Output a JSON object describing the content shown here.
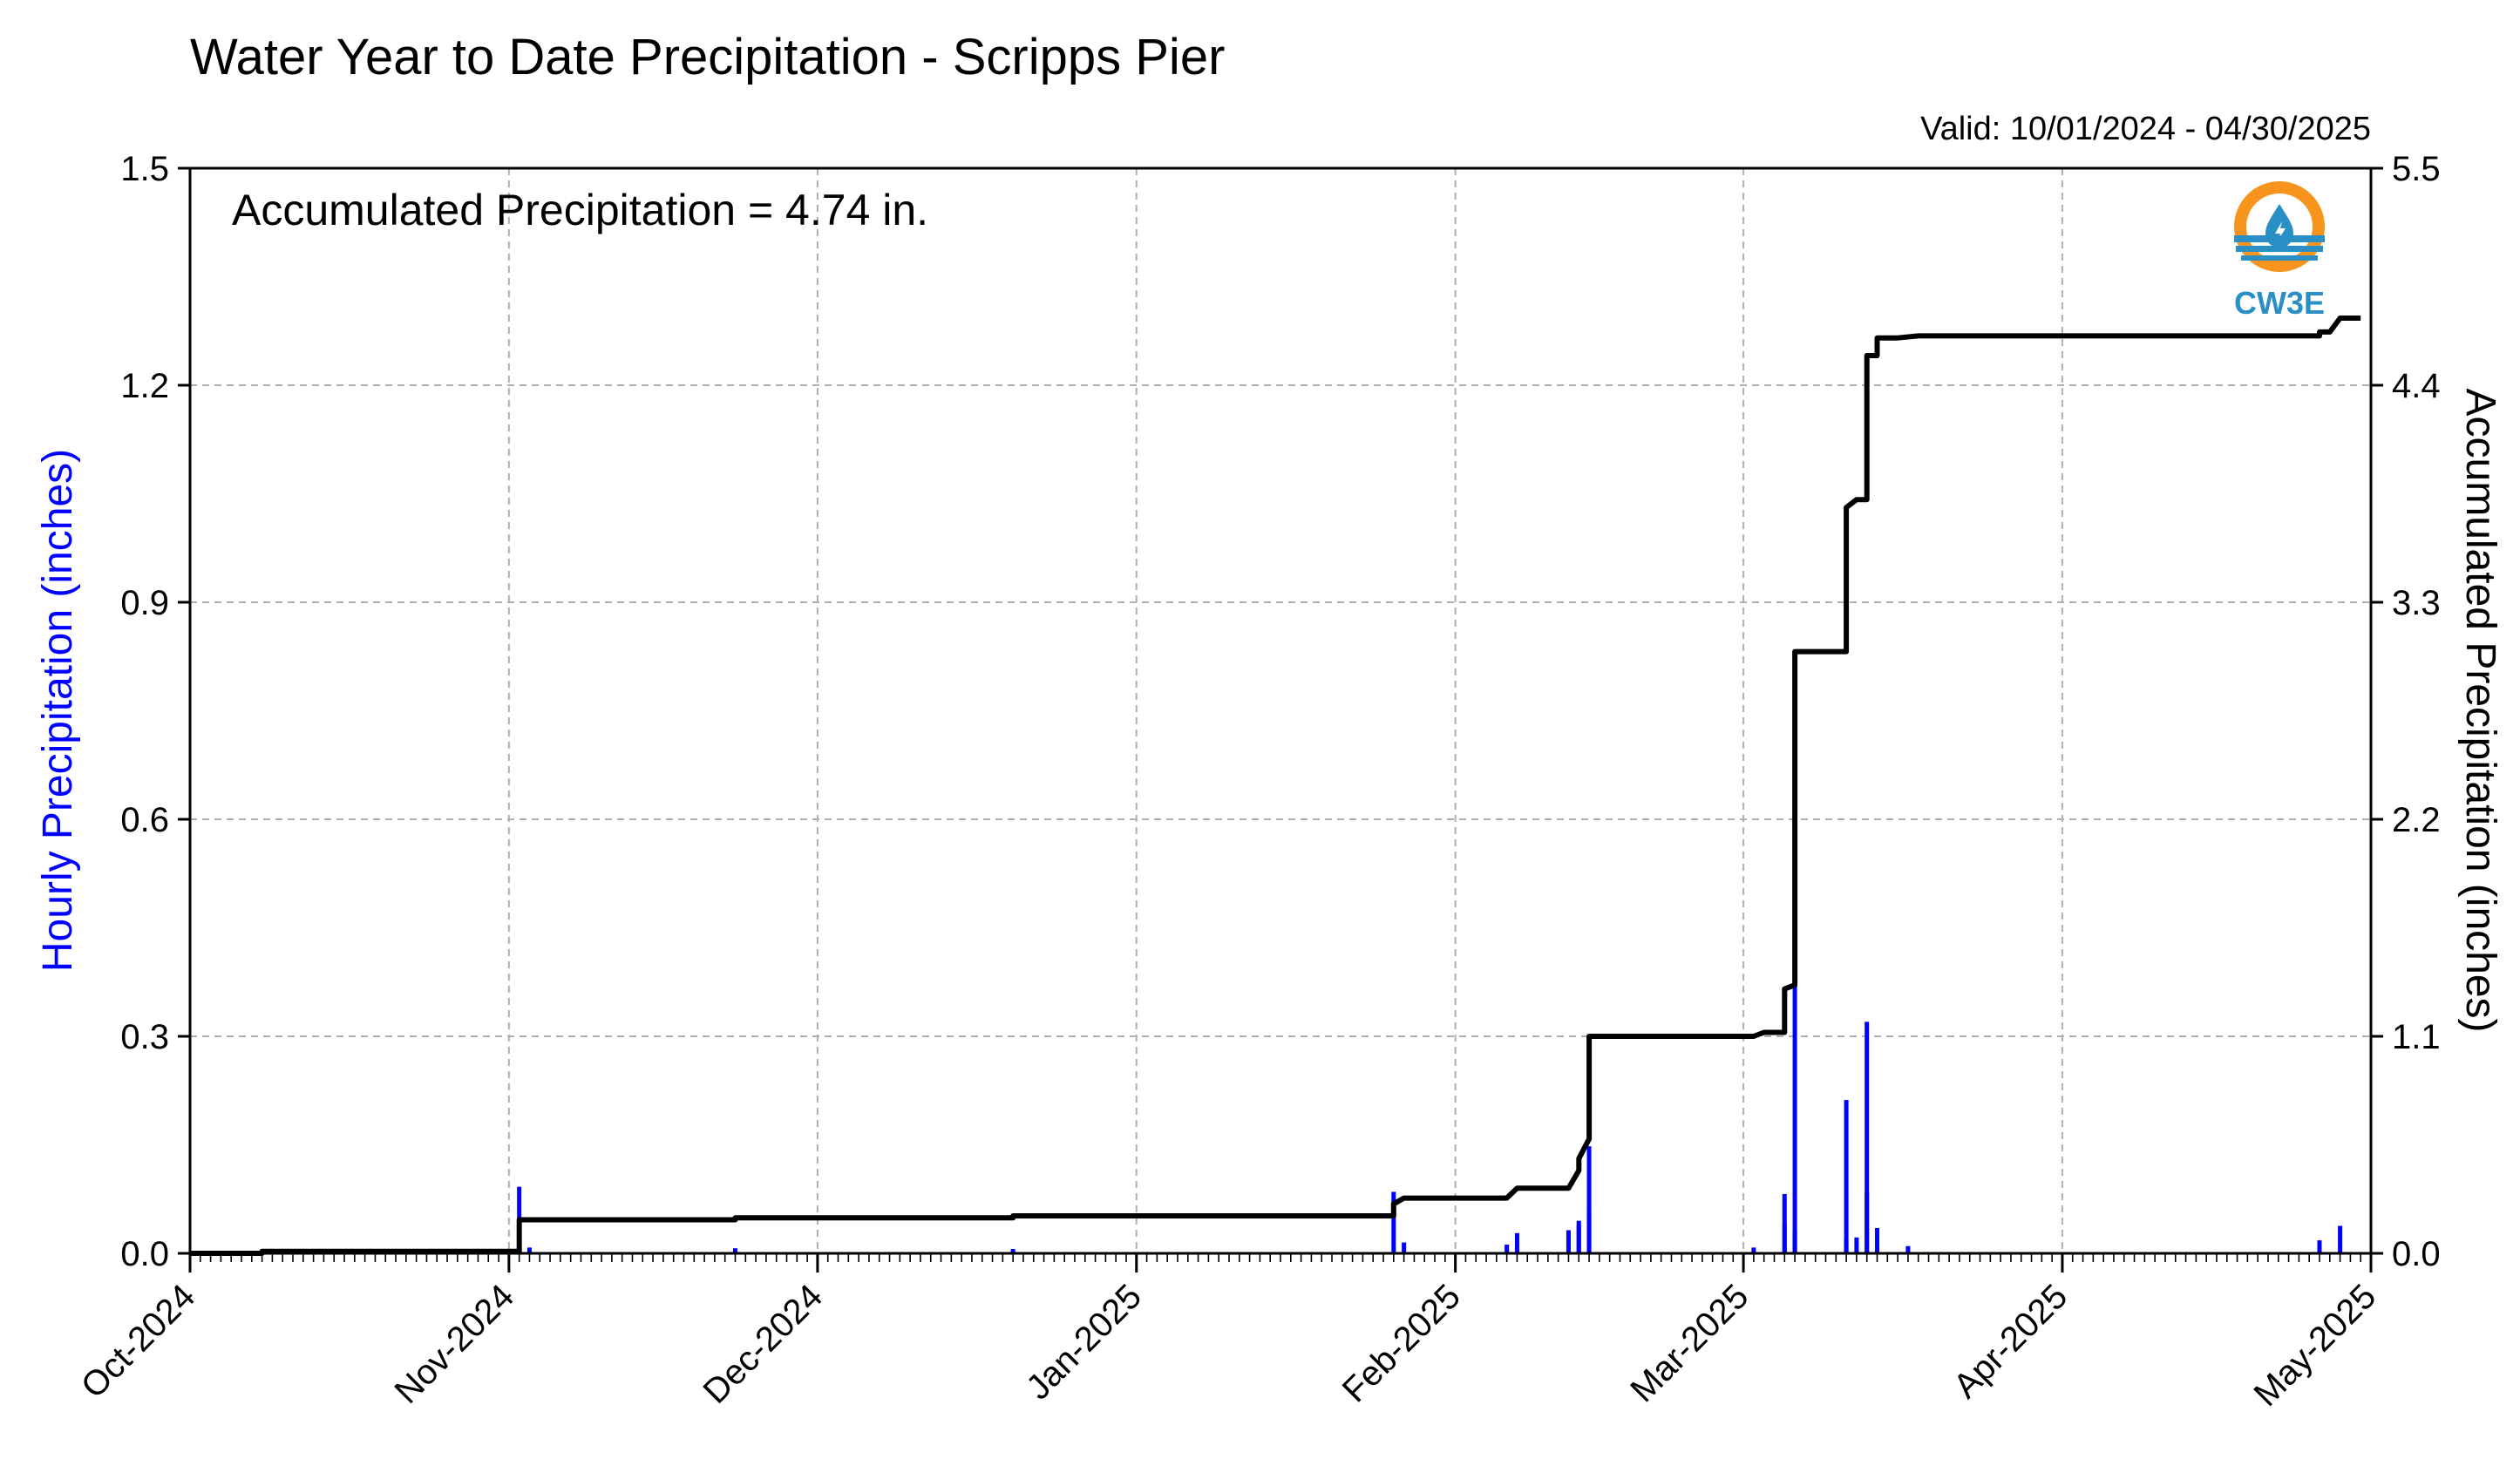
{
  "chart_data": {
    "type": "line",
    "title": "Water Year to Date Precipitation - Scripps Pier",
    "valid_range": "Valid: 10/01/2024 - 04/30/2025",
    "annotation": "Accumulated Precipitation = 4.74 in.",
    "logo_text": "CW3E",
    "x_tick_labels": [
      "Oct-2024",
      "Nov-2024",
      "Dec-2024",
      "Jan-2025",
      "Feb-2025",
      "Mar-2025",
      "Apr-2025",
      "May-2025"
    ],
    "x_tick_dates": [
      "2024-10-01",
      "2024-11-01",
      "2024-12-01",
      "2025-01-01",
      "2025-02-01",
      "2025-03-01",
      "2025-04-01",
      "2025-05-01"
    ],
    "xlim": [
      "2024-10-01",
      "2025-05-01"
    ],
    "y_left": {
      "label": "Hourly Precipitation (inches)",
      "ylim": [
        0,
        1.5
      ],
      "ticks": [
        "0.0",
        "0.3",
        "0.6",
        "0.9",
        "1.2",
        "1.5"
      ],
      "color": "#0000ff"
    },
    "y_right": {
      "label": "Accumulated Precipitation (inches)",
      "ylim": [
        0,
        5.5
      ],
      "ticks": [
        "0.0",
        "1.1",
        "2.2",
        "3.3",
        "4.4",
        "5.5"
      ],
      "color": "#000000"
    },
    "grid": true,
    "series": [
      {
        "axis": "right",
        "color": "#000000",
        "points": [
          [
            "2024-10-01",
            0.0
          ],
          [
            "2024-10-08",
            0.0
          ],
          [
            "2024-10-08",
            0.01
          ],
          [
            "2024-11-02",
            0.01
          ],
          [
            "2024-11-02",
            0.17
          ],
          [
            "2024-11-23",
            0.17
          ],
          [
            "2024-11-23",
            0.18
          ],
          [
            "2024-12-20",
            0.18
          ],
          [
            "2024-12-20",
            0.19
          ],
          [
            "2025-01-26",
            0.19
          ],
          [
            "2025-01-26",
            0.25
          ],
          [
            "2025-01-27",
            0.28
          ],
          [
            "2025-02-06",
            0.28
          ],
          [
            "2025-02-07",
            0.33
          ],
          [
            "2025-02-12",
            0.33
          ],
          [
            "2025-02-13",
            0.42
          ],
          [
            "2025-02-13",
            0.48
          ],
          [
            "2025-02-14",
            0.58
          ],
          [
            "2025-02-14",
            0.75
          ],
          [
            "2025-02-14",
            1.1
          ],
          [
            "2025-03-02",
            1.1
          ],
          [
            "2025-03-03",
            1.12
          ],
          [
            "2025-03-05",
            1.12
          ],
          [
            "2025-03-05",
            1.34
          ],
          [
            "2025-03-06",
            1.36
          ],
          [
            "2025-03-06",
            3.05
          ],
          [
            "2025-03-11",
            3.05
          ],
          [
            "2025-03-11",
            3.4
          ],
          [
            "2025-03-11",
            3.78
          ],
          [
            "2025-03-12",
            3.82
          ],
          [
            "2025-03-13",
            3.82
          ],
          [
            "2025-03-13",
            4.3
          ],
          [
            "2025-03-13",
            4.55
          ],
          [
            "2025-03-14",
            4.55
          ],
          [
            "2025-03-14",
            4.64
          ],
          [
            "2025-03-16",
            4.64
          ],
          [
            "2025-03-18",
            4.65
          ],
          [
            "2025-04-26",
            4.65
          ],
          [
            "2025-04-26",
            4.67
          ],
          [
            "2025-04-27",
            4.67
          ],
          [
            "2025-04-28",
            4.74
          ],
          [
            "2025-04-30",
            4.74
          ]
        ]
      },
      {
        "axis": "left",
        "color": "#0000ff",
        "bars": [
          [
            "2024-10-08",
            0.003
          ],
          [
            "2024-11-02",
            0.092
          ],
          [
            "2024-11-03",
            0.008
          ],
          [
            "2024-11-23",
            0.007
          ],
          [
            "2024-12-20",
            0.006
          ],
          [
            "2025-01-26",
            0.085
          ],
          [
            "2025-01-27",
            0.015
          ],
          [
            "2025-02-06",
            0.012
          ],
          [
            "2025-02-07",
            0.028
          ],
          [
            "2025-02-12",
            0.032
          ],
          [
            "2025-02-13",
            0.04
          ],
          [
            "2025-02-13",
            0.045
          ],
          [
            "2025-02-14",
            0.148
          ],
          [
            "2025-02-14",
            0.06
          ],
          [
            "2025-03-02",
            0.008
          ],
          [
            "2025-03-05",
            0.082
          ],
          [
            "2025-03-05",
            0.04
          ],
          [
            "2025-03-06",
            0.372
          ],
          [
            "2025-03-06",
            0.03
          ],
          [
            "2025-03-11",
            0.212
          ],
          [
            "2025-03-11",
            0.02
          ],
          [
            "2025-03-12",
            0.022
          ],
          [
            "2025-03-13",
            0.32
          ],
          [
            "2025-03-13",
            0.085
          ],
          [
            "2025-03-14",
            0.035
          ],
          [
            "2025-03-17",
            0.01
          ],
          [
            "2025-04-26",
            0.018
          ],
          [
            "2025-04-28",
            0.038
          ]
        ]
      }
    ]
  }
}
